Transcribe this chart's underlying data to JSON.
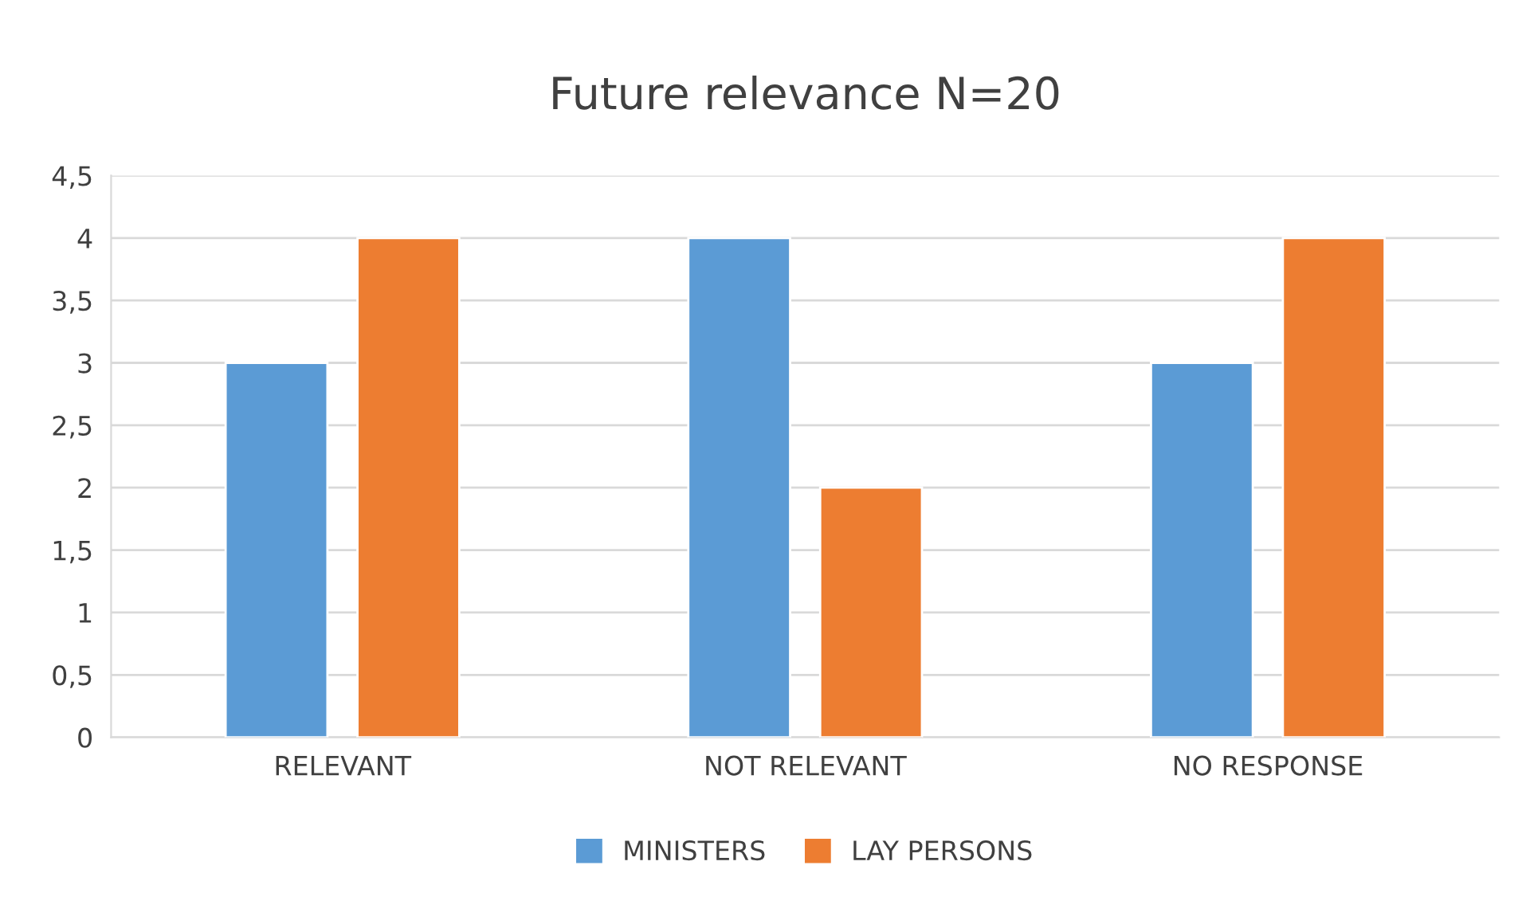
{
  "chart_data": {
    "type": "bar",
    "title": "Future relevance N=20",
    "categories": [
      "RELEVANT",
      "NOT RELEVANT",
      "NO RESPONSE"
    ],
    "series": [
      {
        "name": "MINISTERS",
        "color": "#5b9bd5",
        "values": [
          3,
          4,
          3
        ]
      },
      {
        "name": "LAY PERSONS",
        "color": "#ed7d31",
        "values": [
          4,
          2,
          4
        ]
      }
    ],
    "ylim": [
      0,
      4.5
    ],
    "yticks": [
      0,
      {
        "value": 0.5,
        "label": "0,5"
      },
      1,
      {
        "value": 1.5,
        "label": "1,5"
      },
      2,
      {
        "value": 2.5,
        "label": "2,5"
      },
      3,
      {
        "value": 3.5,
        "label": "3,5"
      },
      4,
      {
        "value": 4.5,
        "label": "4,5"
      }
    ],
    "grid": "y",
    "legend": "bottom"
  }
}
